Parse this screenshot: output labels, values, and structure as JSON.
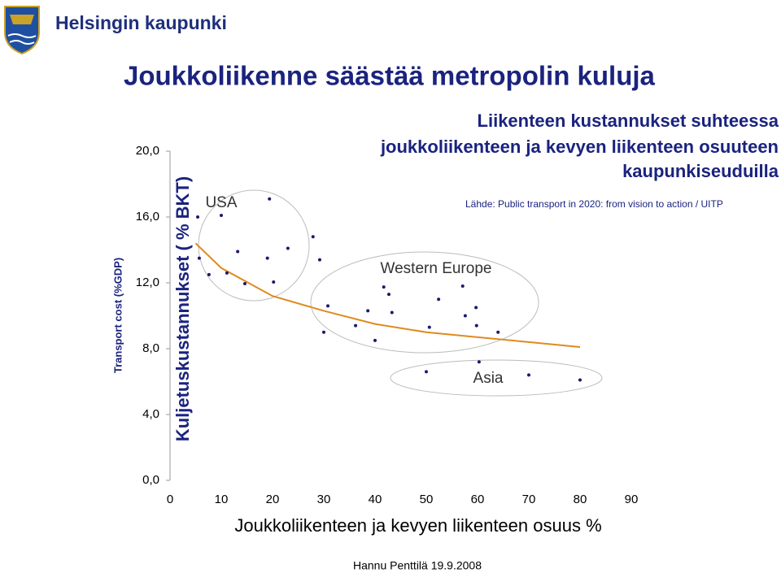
{
  "header": {
    "logo_text": "Helsingin kaupunki",
    "title": "Joukkoliikenne säästää metropolin kuluja"
  },
  "chart_data": {
    "type": "scatter",
    "title": [
      "Liikenteen kustannukset suhteessa",
      "joukkoliikenteen ja kevyen liikenteen osuuteen",
      "kaupunkiseuduilla"
    ],
    "source": "Lähde: Public transport in 2020: from vision to action / UITP",
    "ylabel": "Kuljetuskustannukset ( % BKT)",
    "ylabel_secondary": "Transport cost (%GDP)",
    "xlabel": "Joukkoliikenteen ja kevyen liikenteen osuus %",
    "annotations": [
      "USA",
      "Western Europe",
      "Asia"
    ],
    "xlim": [
      0,
      90
    ],
    "xticks": [
      0,
      10,
      20,
      30,
      40,
      50,
      60,
      70,
      80,
      90
    ],
    "ylim": [
      0,
      20
    ],
    "yticks": [
      {
        "value": 0,
        "label": "0,0"
      },
      {
        "value": 4,
        "label": "4,0"
      },
      {
        "value": 8,
        "label": "8,0"
      },
      {
        "value": 12,
        "label": "12,0"
      },
      {
        "value": 16,
        "label": "16,0"
      },
      {
        "value": 20,
        "label": "20,0"
      }
    ],
    "color": "#1a1a6e",
    "x": [
      5.4,
      10.0,
      19.4,
      5.7,
      7.6,
      11.1,
      13.2,
      14.6,
      19.0,
      20.2,
      23.0,
      27.9,
      29.2,
      30.8,
      30.0,
      36.2,
      38.6,
      40.0,
      41.7,
      42.7,
      43.3,
      50.6,
      52.4,
      50.0,
      57.1,
      57.6,
      59.7,
      59.8,
      60.3,
      64.0,
      70.0,
      80.0
    ],
    "y": [
      16.0,
      16.1,
      17.1,
      13.5,
      12.5,
      12.6,
      13.9,
      11.95,
      13.5,
      12.05,
      14.1,
      14.8,
      13.4,
      10.6,
      9.0,
      9.4,
      10.3,
      8.5,
      11.75,
      11.3,
      10.2,
      9.3,
      11.0,
      6.6,
      11.8,
      10.0,
      10.5,
      9.4,
      7.2,
      9.0,
      6.4,
      6.1
    ],
    "trendline": {
      "color": "#e08a1e",
      "x": [
        5,
        10,
        20,
        30,
        40,
        50,
        60,
        70,
        80
      ],
      "y": [
        14.4,
        12.9,
        11.2,
        10.3,
        9.5,
        9.0,
        8.7,
        8.4,
        8.1
      ]
    }
  },
  "footer": "Hannu Penttilä 19.9.2008"
}
